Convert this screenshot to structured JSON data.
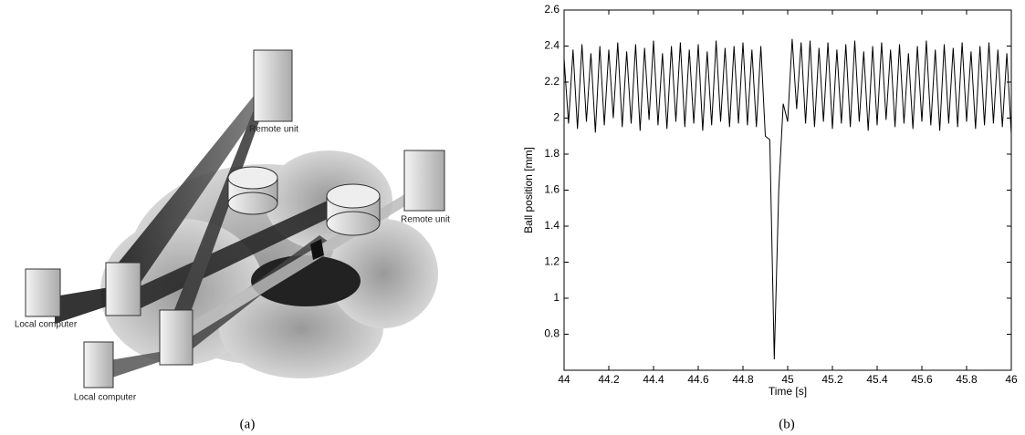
{
  "figure": {
    "panel_a": {
      "labels": [
        "Remote unit",
        "Remote unit",
        "Local computer",
        "Local computer"
      ],
      "caption": "(a)"
    },
    "panel_b": {
      "caption": "(b)"
    }
  },
  "chart_data": {
    "type": "line",
    "xlabel": "Time [s]",
    "ylabel": "Ball position [mm]",
    "color": "#000000",
    "x": [
      44,
      44.02,
      44.04,
      44.06,
      44.08,
      44.1,
      44.12,
      44.14,
      44.16,
      44.18,
      44.2,
      44.22,
      44.24,
      44.26,
      44.28,
      44.3,
      44.32,
      44.34,
      44.36,
      44.38,
      44.4,
      44.42,
      44.44,
      44.46,
      44.48,
      44.5,
      44.52,
      44.54,
      44.56,
      44.58,
      44.6,
      44.62,
      44.64,
      44.66,
      44.68,
      44.7,
      44.72,
      44.74,
      44.76,
      44.78,
      44.8,
      44.82,
      44.84,
      44.86,
      44.88,
      44.9,
      44.92,
      44.94,
      44.96,
      44.98,
      45,
      45.02,
      45.04,
      45.06,
      45.08,
      45.1,
      45.12,
      45.14,
      45.16,
      45.18,
      45.2,
      45.22,
      45.24,
      45.26,
      45.28,
      45.3,
      45.32,
      45.34,
      45.36,
      45.38,
      45.4,
      45.42,
      45.44,
      45.46,
      45.48,
      45.5,
      45.52,
      45.54,
      45.56,
      45.58,
      45.6,
      45.62,
      45.64,
      45.66,
      45.68,
      45.7,
      45.72,
      45.74,
      45.76,
      45.78,
      45.8,
      45.82,
      45.84,
      45.86,
      45.88,
      45.9,
      45.92,
      45.94,
      45.96,
      45.98,
      46
    ],
    "values": [
      2.33,
      1.97,
      2.38,
      1.94,
      2.41,
      1.98,
      2.36,
      1.92,
      2.4,
      1.96,
      2.38,
      2.0,
      2.42,
      1.95,
      2.37,
      1.97,
      2.41,
      1.93,
      2.39,
      1.99,
      2.43,
      1.96,
      2.36,
      1.94,
      2.4,
      1.98,
      2.42,
      1.95,
      2.38,
      1.97,
      2.41,
      1.93,
      2.37,
      1.96,
      2.43,
      1.98,
      2.39,
      1.95,
      2.4,
      1.97,
      2.42,
      1.96,
      2.38,
      1.95,
      2.4,
      1.9,
      1.88,
      0.66,
      1.6,
      2.08,
      1.98,
      2.44,
      2.05,
      2.42,
      1.97,
      2.43,
      1.95,
      2.39,
      1.98,
      2.42,
      1.94,
      2.38,
      1.97,
      2.41,
      1.95,
      2.43,
      1.98,
      2.37,
      1.93,
      2.4,
      1.96,
      2.42,
      1.99,
      2.38,
      1.95,
      2.41,
      1.97,
      2.36,
      1.94,
      2.4,
      1.98,
      2.43,
      1.96,
      2.38,
      1.93,
      2.41,
      1.97,
      2.39,
      1.95,
      2.42,
      1.98,
      2.37,
      1.94,
      2.4,
      1.96,
      2.42,
      1.97,
      2.38,
      1.95,
      2.36,
      1.91
    ],
    "xlim": [
      44,
      46
    ],
    "ylim": [
      0.6,
      2.6
    ],
    "xticks": [
      44,
      44.2,
      44.4,
      44.6,
      44.8,
      45,
      45.2,
      45.4,
      45.6,
      45.8,
      46
    ],
    "yticks": [
      0.8,
      1,
      1.2,
      1.4,
      1.6,
      1.8,
      2,
      2.2,
      2.4,
      2.6
    ]
  }
}
